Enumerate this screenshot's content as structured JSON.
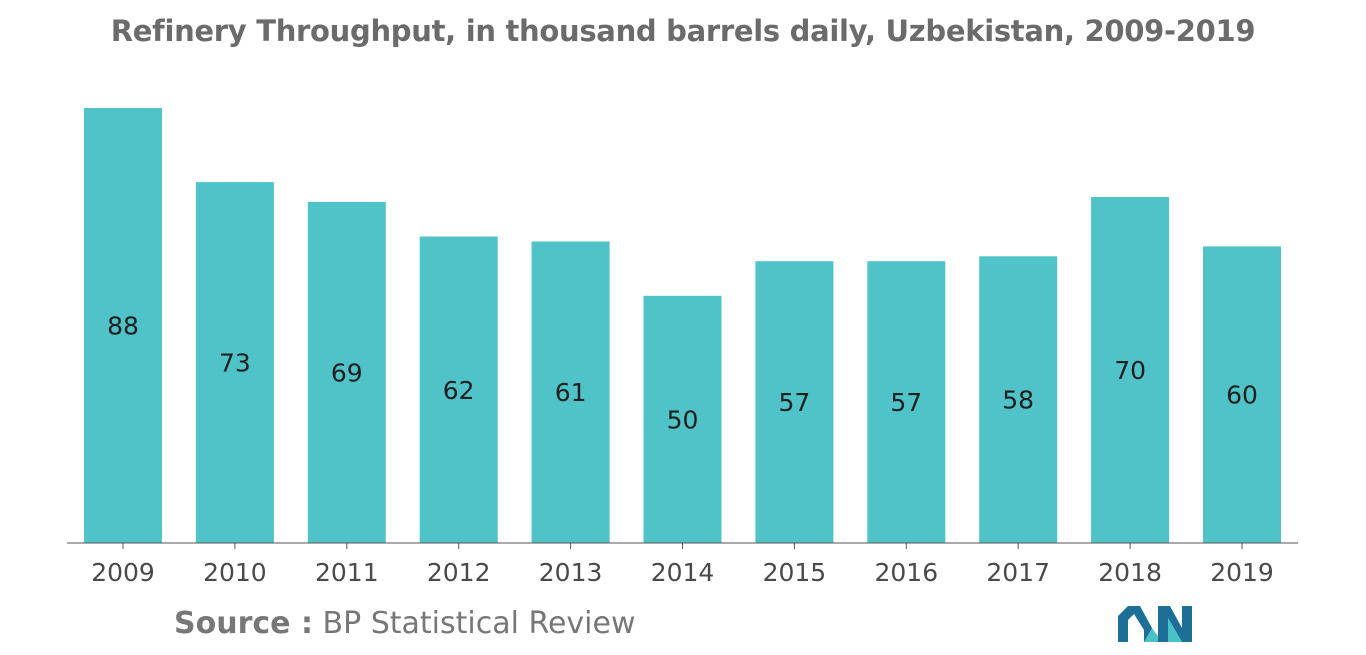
{
  "colors": {
    "bar": "#4fc3c8",
    "axis": "#555555",
    "logo_dark": "#1e6f98",
    "logo_light": "#48c2c6"
  },
  "chart_data": {
    "type": "bar",
    "title": "Refinery Throughput, in thousand barrels daily, Uzbekistan, 2009-2019",
    "categories": [
      "2009",
      "2010",
      "2011",
      "2012",
      "2013",
      "2014",
      "2015",
      "2016",
      "2017",
      "2018",
      "2019"
    ],
    "values": [
      88,
      73,
      69,
      62,
      61,
      50,
      57,
      57,
      58,
      70,
      60
    ],
    "value_labels": [
      "88",
      "73",
      "69",
      "62",
      "61",
      "50",
      "57",
      "57",
      "58",
      "70",
      "60"
    ],
    "xlabel": "",
    "ylabel": "",
    "ylim": [
      0,
      88
    ],
    "grid": false,
    "legend": "none",
    "data_label_position": "center"
  },
  "source": {
    "label": "Source :",
    "text": " BP Statistical Review"
  },
  "logo": {
    "icon": "mordor-intelligence-logo-icon"
  }
}
